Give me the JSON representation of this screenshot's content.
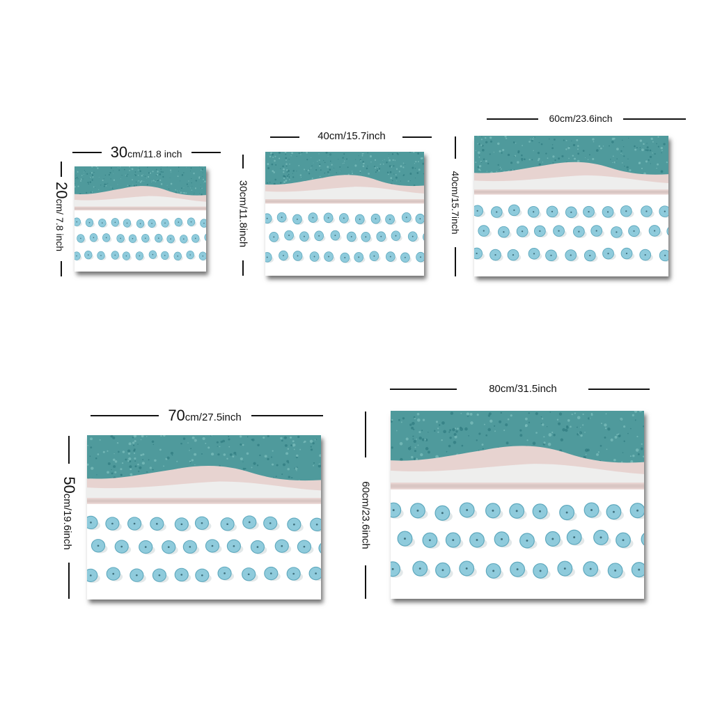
{
  "colors": {
    "sea": "#4f9a9c",
    "sea_dark": "#2f7a80",
    "foam": "#eef2f2",
    "sand": "#e7d3d0",
    "umbrella": "#8fcbdc",
    "umbrella_dark": "#5ea8bd"
  },
  "panels": [
    {
      "id": "s1",
      "width_label_num": "30",
      "width_label_unit": "cm/11.8 inch",
      "height_label_num": "20",
      "height_label_unit": "cm/ 7.8 inch"
    },
    {
      "id": "s2",
      "width_label": "40cm/15.7inch",
      "height_label": "30cm/11.8inch"
    },
    {
      "id": "s3",
      "width_label": "60cm/23.6inch",
      "height_label": "40cm/15.7inch"
    },
    {
      "id": "s4",
      "width_label_num": "70",
      "width_label_unit": "cm/27.5inch",
      "height_label_num": "50",
      "height_label_unit": "cm/19.6inch"
    },
    {
      "id": "s5",
      "width_label": "80cm/31.5inch",
      "height_label": "60cm/23.6inch"
    }
  ]
}
